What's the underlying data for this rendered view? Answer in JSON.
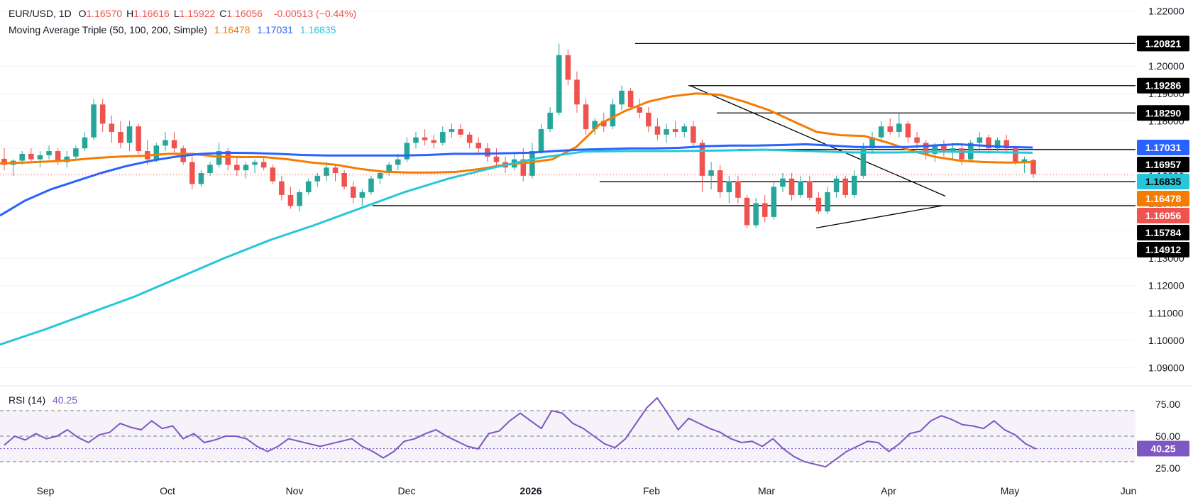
{
  "header": {
    "symbol": "EUR/USD, 1D",
    "ohlc": [
      {
        "label": "O",
        "value": "1.16570"
      },
      {
        "label": "H",
        "value": "1.16616"
      },
      {
        "label": "L",
        "value": "1.15922"
      },
      {
        "label": "C",
        "value": "1.16056"
      }
    ],
    "change": "-0.00513 (−0.44%)",
    "indicator_label": "Moving Average Triple (50, 100, 200, Simple)",
    "ma_values": [
      "1.16478",
      "1.17031",
      "1.16835"
    ],
    "rsi_label": "RSI (14)",
    "rsi_value": "40.25"
  },
  "colors": {
    "up": "#26a69a",
    "down": "#ef5350",
    "sma50": "#f57c00",
    "sma100": "#2962ff",
    "sma200": "#26c6da",
    "rsi": "#7e57c2",
    "level": "#000000"
  },
  "chart_data": {
    "type": "line",
    "ylim": [
      1.085,
      1.222
    ],
    "y_ticks": [
      "1.22000",
      "1.20000",
      "1.19000",
      "1.18000",
      "1.17000",
      "1.16000",
      "1.15000",
      "1.14000",
      "1.13000",
      "1.12000",
      "1.11000",
      "1.10000",
      "1.09000"
    ],
    "x_ticks": [
      "Sep",
      "Oct",
      "Nov",
      "Dec",
      "2026",
      "Feb",
      "Mar",
      "Apr",
      "May",
      "Jun"
    ],
    "price_levels": [
      {
        "value": 1.20821,
        "label": "1.20821"
      },
      {
        "value": 1.19286,
        "label": "1.19286"
      },
      {
        "value": 1.1829,
        "label": "1.18290"
      },
      {
        "value": 1.16957,
        "label": "1.16957"
      },
      {
        "value": 1.15784,
        "label": "1.15784"
      },
      {
        "value": 1.14912,
        "label": "1.14912"
      }
    ],
    "last_price": {
      "value": 1.16056,
      "label": "1.16056"
    },
    "series": [
      {
        "name": "SMA 50",
        "last": 1.16478,
        "label": "1.16478",
        "values": [
          1.1645,
          1.1648,
          1.1652,
          1.1657,
          1.1665,
          1.167,
          1.1673,
          1.168,
          1.168,
          1.167,
          1.1668,
          1.1668,
          1.166,
          1.1648,
          1.164,
          1.1625,
          1.1615,
          1.1612,
          1.1612,
          1.1614,
          1.1625,
          1.164,
          1.1648,
          1.166,
          1.1705,
          1.179,
          1.1835,
          1.187,
          1.189,
          1.19,
          1.1895,
          1.187,
          1.184,
          1.18,
          1.176,
          1.1748,
          1.1745,
          1.172,
          1.169,
          1.1668,
          1.1655,
          1.165,
          1.1648,
          1.165
        ]
      },
      {
        "name": "SMA 100",
        "last": 1.17031,
        "label": "1.17031",
        "values": [
          1.1455,
          1.151,
          1.155,
          1.158,
          1.161,
          1.1635,
          1.1655,
          1.167,
          1.168,
          1.1684,
          1.1683,
          1.168,
          1.1676,
          1.1674,
          1.1674,
          1.1674,
          1.1674,
          1.1676,
          1.168,
          1.168,
          1.1682,
          1.1684,
          1.169,
          1.1695,
          1.1697,
          1.17,
          1.17,
          1.1702,
          1.1708,
          1.171,
          1.171,
          1.1712,
          1.1715,
          1.171,
          1.1705,
          1.1705,
          1.1705,
          1.171,
          1.1715,
          1.171,
          1.1705,
          1.1703
        ]
      },
      {
        "name": "SMA 200",
        "last": 1.16835,
        "label": "1.16835",
        "values": [
          1.0985,
          1.104,
          1.11,
          1.116,
          1.123,
          1.13,
          1.1365,
          1.142,
          1.148,
          1.154,
          1.159,
          1.163,
          1.1665,
          1.1688,
          1.169,
          1.169,
          1.1692,
          1.1695,
          1.169,
          1.1685,
          1.1685,
          1.1688,
          1.1686,
          1.1684
        ]
      }
    ],
    "rsi": {
      "name": "RSI (14)",
      "ylim": [
        15,
        85
      ],
      "y_ticks": [
        "75.00",
        "50.00",
        "25.00"
      ],
      "band": [
        30,
        70
      ],
      "mid": 50,
      "last": 40.25,
      "label": "40.25",
      "values": [
        43,
        50,
        47,
        52,
        48,
        50,
        55,
        49,
        45,
        51,
        53,
        60,
        57,
        55,
        62,
        56,
        58,
        48,
        52,
        45,
        47,
        50,
        50,
        48,
        42,
        38,
        42,
        48,
        46,
        44,
        42,
        44,
        46,
        48,
        42,
        38,
        33,
        38,
        46,
        48,
        52,
        55,
        50,
        46,
        42,
        40,
        52,
        54,
        62,
        68,
        62,
        56,
        70,
        68,
        60,
        56,
        50,
        44,
        41,
        48,
        60,
        72,
        80,
        68,
        55,
        64,
        60,
        56,
        53,
        48,
        45,
        46,
        42,
        48,
        40,
        34,
        30,
        28,
        26,
        32,
        38,
        42,
        46,
        45,
        38,
        44,
        52,
        54,
        62,
        66,
        63,
        59,
        58,
        56,
        62,
        55,
        51,
        44,
        40
      ]
    },
    "candles": [
      [
        1.1662,
        1.17,
        1.162,
        1.164
      ],
      [
        1.164,
        1.166,
        1.16,
        1.1655
      ],
      [
        1.1655,
        1.169,
        1.164,
        1.168
      ],
      [
        1.168,
        1.17,
        1.165,
        1.166
      ],
      [
        1.166,
        1.169,
        1.163,
        1.1675
      ],
      [
        1.1675,
        1.171,
        1.166,
        1.169
      ],
      [
        1.169,
        1.17,
        1.164,
        1.165
      ],
      [
        1.165,
        1.169,
        1.163,
        1.167
      ],
      [
        1.167,
        1.171,
        1.166,
        1.17
      ],
      [
        1.17,
        1.176,
        1.169,
        1.174
      ],
      [
        1.174,
        1.188,
        1.173,
        1.186
      ],
      [
        1.186,
        1.188,
        1.176,
        1.179
      ],
      [
        1.179,
        1.182,
        1.172,
        1.176
      ],
      [
        1.176,
        1.18,
        1.17,
        1.172
      ],
      [
        1.172,
        1.18,
        1.169,
        1.178
      ],
      [
        1.178,
        1.179,
        1.168,
        1.169
      ],
      [
        1.169,
        1.173,
        1.164,
        1.166
      ],
      [
        1.166,
        1.172,
        1.165,
        1.171
      ],
      [
        1.171,
        1.176,
        1.169,
        1.173
      ],
      [
        1.173,
        1.176,
        1.168,
        1.17
      ],
      [
        1.17,
        1.171,
        1.164,
        1.165
      ],
      [
        1.165,
        1.167,
        1.155,
        1.157
      ],
      [
        1.157,
        1.162,
        1.156,
        1.161
      ],
      [
        1.161,
        1.165,
        1.16,
        1.164
      ],
      [
        1.164,
        1.172,
        1.163,
        1.169
      ],
      [
        1.169,
        1.17,
        1.162,
        1.164
      ],
      [
        1.164,
        1.167,
        1.16,
        1.162
      ],
      [
        1.162,
        1.165,
        1.159,
        1.164
      ],
      [
        1.164,
        1.166,
        1.161,
        1.165
      ],
      [
        1.165,
        1.167,
        1.162,
        1.163
      ],
      [
        1.163,
        1.164,
        1.157,
        1.158
      ],
      [
        1.158,
        1.16,
        1.151,
        1.153
      ],
      [
        1.153,
        1.156,
        1.148,
        1.149
      ],
      [
        1.149,
        1.155,
        1.147,
        1.154
      ],
      [
        1.154,
        1.159,
        1.153,
        1.158
      ],
      [
        1.158,
        1.161,
        1.156,
        1.16
      ],
      [
        1.16,
        1.165,
        1.158,
        1.163
      ],
      [
        1.163,
        1.164,
        1.158,
        1.161
      ],
      [
        1.161,
        1.162,
        1.155,
        1.156
      ],
      [
        1.156,
        1.158,
        1.15,
        1.152
      ],
      [
        1.152,
        1.155,
        1.149,
        1.154
      ],
      [
        1.154,
        1.16,
        1.153,
        1.159
      ],
      [
        1.159,
        1.162,
        1.157,
        1.161
      ],
      [
        1.161,
        1.165,
        1.16,
        1.164
      ],
      [
        1.164,
        1.168,
        1.162,
        1.166
      ],
      [
        1.166,
        1.174,
        1.165,
        1.172
      ],
      [
        1.172,
        1.176,
        1.17,
        1.174
      ],
      [
        1.174,
        1.177,
        1.171,
        1.173
      ],
      [
        1.173,
        1.175,
        1.17,
        1.172
      ],
      [
        1.172,
        1.178,
        1.171,
        1.176
      ],
      [
        1.176,
        1.179,
        1.174,
        1.177
      ],
      [
        1.177,
        1.179,
        1.174,
        1.175
      ],
      [
        1.175,
        1.176,
        1.17,
        1.172
      ],
      [
        1.172,
        1.174,
        1.168,
        1.17
      ],
      [
        1.17,
        1.172,
        1.165,
        1.167
      ],
      [
        1.167,
        1.17,
        1.163,
        1.165
      ],
      [
        1.165,
        1.167,
        1.161,
        1.163
      ],
      [
        1.163,
        1.168,
        1.162,
        1.166
      ],
      [
        1.166,
        1.17,
        1.158,
        1.16
      ],
      [
        1.16,
        1.172,
        1.159,
        1.169
      ],
      [
        1.169,
        1.179,
        1.168,
        1.177
      ],
      [
        1.177,
        1.185,
        1.176,
        1.183
      ],
      [
        1.183,
        1.2082,
        1.182,
        1.204
      ],
      [
        1.204,
        1.206,
        1.193,
        1.195
      ],
      [
        1.195,
        1.198,
        1.183,
        1.186
      ],
      [
        1.186,
        1.188,
        1.175,
        1.177
      ],
      [
        1.177,
        1.181,
        1.175,
        1.18
      ],
      [
        1.18,
        1.183,
        1.176,
        1.178
      ],
      [
        1.178,
        1.188,
        1.177,
        1.186
      ],
      [
        1.186,
        1.1929,
        1.184,
        1.191
      ],
      [
        1.191,
        1.192,
        1.184,
        1.185
      ],
      [
        1.185,
        1.188,
        1.181,
        1.183
      ],
      [
        1.183,
        1.185,
        1.176,
        1.178
      ],
      [
        1.178,
        1.181,
        1.173,
        1.175
      ],
      [
        1.175,
        1.179,
        1.172,
        1.177
      ],
      [
        1.177,
        1.18,
        1.174,
        1.176
      ],
      [
        1.176,
        1.179,
        1.174,
        1.178
      ],
      [
        1.178,
        1.18,
        1.17,
        1.172
      ],
      [
        1.172,
        1.173,
        1.154,
        1.16
      ],
      [
        1.16,
        1.165,
        1.155,
        1.162
      ],
      [
        1.162,
        1.164,
        1.152,
        1.154
      ],
      [
        1.154,
        1.16,
        1.15,
        1.158
      ],
      [
        1.158,
        1.16,
        1.15,
        1.152
      ],
      [
        1.152,
        1.153,
        1.141,
        1.142
      ],
      [
        1.142,
        1.152,
        1.141,
        1.15
      ],
      [
        1.15,
        1.153,
        1.143,
        1.145
      ],
      [
        1.145,
        1.158,
        1.144,
        1.156
      ],
      [
        1.156,
        1.161,
        1.154,
        1.159
      ],
      [
        1.159,
        1.161,
        1.151,
        1.153
      ],
      [
        1.153,
        1.16,
        1.152,
        1.158
      ],
      [
        1.158,
        1.16,
        1.151,
        1.152
      ],
      [
        1.152,
        1.154,
        1.146,
        1.147
      ],
      [
        1.147,
        1.156,
        1.146,
        1.154
      ],
      [
        1.154,
        1.16,
        1.152,
        1.159
      ],
      [
        1.159,
        1.16,
        1.152,
        1.153
      ],
      [
        1.153,
        1.162,
        1.152,
        1.16
      ],
      [
        1.16,
        1.172,
        1.159,
        1.17
      ],
      [
        1.17,
        1.176,
        1.168,
        1.174
      ],
      [
        1.174,
        1.18,
        1.172,
        1.178
      ],
      [
        1.178,
        1.181,
        1.175,
        1.176
      ],
      [
        1.176,
        1.1829,
        1.174,
        1.179
      ],
      [
        1.179,
        1.18,
        1.172,
        1.174
      ],
      [
        1.174,
        1.176,
        1.17,
        1.172
      ],
      [
        1.172,
        1.173,
        1.166,
        1.168
      ],
      [
        1.168,
        1.172,
        1.165,
        1.171
      ],
      [
        1.171,
        1.173,
        1.167,
        1.169
      ],
      [
        1.169,
        1.172,
        1.166,
        1.17
      ],
      [
        1.17,
        1.172,
        1.164,
        1.166
      ],
      [
        1.166,
        1.173,
        1.165,
        1.172
      ],
      [
        1.172,
        1.176,
        1.169,
        1.174
      ],
      [
        1.174,
        1.175,
        1.168,
        1.17
      ],
      [
        1.17,
        1.174,
        1.169,
        1.173
      ],
      [
        1.173,
        1.175,
        1.168,
        1.17
      ],
      [
        1.17,
        1.171,
        1.164,
        1.165
      ],
      [
        1.165,
        1.167,
        1.161,
        1.166
      ],
      [
        1.1657,
        1.1662,
        1.1592,
        1.1606
      ]
    ]
  }
}
